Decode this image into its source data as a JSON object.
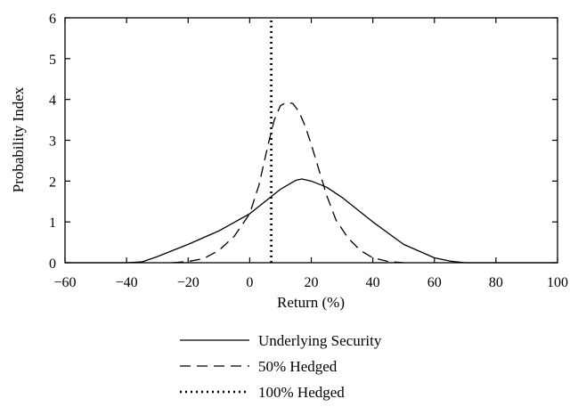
{
  "chart_data": {
    "type": "line",
    "title": "",
    "xlabel": "Return (%)",
    "ylabel": "Probability Index",
    "xlim": [
      -60,
      100
    ],
    "ylim": [
      0,
      6
    ],
    "xticks": [
      -60,
      -40,
      -20,
      0,
      20,
      40,
      60,
      80,
      100
    ],
    "yticks": [
      0,
      1,
      2,
      3,
      4,
      5,
      6
    ],
    "x_tick_labels": [
      "−60",
      "−40",
      "−20",
      "0",
      "20",
      "40",
      "60",
      "80",
      "100"
    ],
    "y_tick_labels": [
      "0",
      "1",
      "2",
      "3",
      "4",
      "5",
      "6"
    ],
    "grid": false,
    "legend_position": "bottom",
    "series": [
      {
        "name": "Underlying Security",
        "style": "solid",
        "x": [
          -60,
          -40,
          -35,
          -30,
          -20,
          -10,
          0,
          5,
          10,
          15,
          17,
          20,
          25,
          30,
          40,
          50,
          60,
          65,
          70,
          80,
          100
        ],
        "y": [
          0,
          0,
          0.02,
          0.15,
          0.45,
          0.78,
          1.2,
          1.5,
          1.8,
          2.02,
          2.05,
          2.0,
          1.85,
          1.6,
          1.0,
          0.45,
          0.12,
          0.04,
          0,
          0,
          0
        ]
      },
      {
        "name": "50% Hedged",
        "style": "dashed",
        "x": [
          -25,
          -20,
          -15,
          -10,
          -5,
          0,
          3,
          6,
          8,
          10,
          12,
          14,
          16,
          18,
          20,
          22,
          25,
          28,
          32,
          36,
          40,
          45,
          50
        ],
        "y": [
          0,
          0.03,
          0.1,
          0.3,
          0.65,
          1.2,
          1.9,
          2.9,
          3.5,
          3.85,
          3.93,
          3.9,
          3.7,
          3.35,
          2.9,
          2.4,
          1.65,
          1.05,
          0.6,
          0.3,
          0.12,
          0.03,
          0
        ]
      },
      {
        "name": "100% Hedged",
        "style": "dotted",
        "x": [
          7,
          7
        ],
        "y": [
          0,
          6
        ]
      }
    ]
  }
}
